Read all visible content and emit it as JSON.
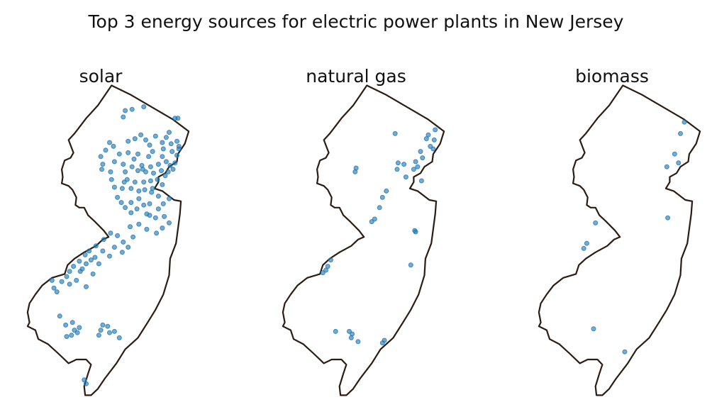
{
  "figure": {
    "title": "Top 3 energy sources for electric power plants in New Jersey"
  },
  "map_style": {
    "outline_color": "#2b1d12",
    "marker_color": "#1f77b4",
    "background": "#ffffff"
  },
  "panels": [
    {
      "title": "solar",
      "plants": [
        {
          "lon": -74.55,
          "lat": 41.16
        },
        {
          "lon": -74.48,
          "lat": 41.17
        },
        {
          "lon": -74.36,
          "lat": 41.19
        },
        {
          "lon": -74.57,
          "lat": 41.11
        },
        {
          "lon": -74.04,
          "lat": 41.1
        },
        {
          "lon": -74.01,
          "lat": 41.1
        },
        {
          "lon": -74.1,
          "lat": 40.99
        },
        {
          "lon": -74.24,
          "lat": 40.96
        },
        {
          "lon": -74.13,
          "lat": 40.95
        },
        {
          "lon": -74.39,
          "lat": 40.97
        },
        {
          "lon": -74.45,
          "lat": 40.94
        },
        {
          "lon": -74.52,
          "lat": 40.92
        },
        {
          "lon": -74.71,
          "lat": 40.91
        },
        {
          "lon": -74.67,
          "lat": 40.88
        },
        {
          "lon": -74.34,
          "lat": 40.93
        },
        {
          "lon": -74.3,
          "lat": 40.89
        },
        {
          "lon": -74.17,
          "lat": 40.91
        },
        {
          "lon": -74.08,
          "lat": 40.9
        },
        {
          "lon": -74.02,
          "lat": 40.92
        },
        {
          "lon": -74.0,
          "lat": 40.88
        },
        {
          "lon": -74.07,
          "lat": 40.84
        },
        {
          "lon": -74.16,
          "lat": 40.86
        },
        {
          "lon": -74.27,
          "lat": 40.84
        },
        {
          "lon": -74.31,
          "lat": 40.8
        },
        {
          "lon": -74.42,
          "lat": 40.82
        },
        {
          "lon": -74.52,
          "lat": 40.83
        },
        {
          "lon": -74.61,
          "lat": 40.82
        },
        {
          "lon": -74.75,
          "lat": 40.85
        },
        {
          "lon": -74.8,
          "lat": 40.8
        },
        {
          "lon": -74.66,
          "lat": 40.76
        },
        {
          "lon": -74.57,
          "lat": 40.74
        },
        {
          "lon": -74.48,
          "lat": 40.72
        },
        {
          "lon": -74.38,
          "lat": 40.73
        },
        {
          "lon": -74.29,
          "lat": 40.72
        },
        {
          "lon": -74.21,
          "lat": 40.74
        },
        {
          "lon": -74.13,
          "lat": 40.76
        },
        {
          "lon": -74.09,
          "lat": 40.73
        },
        {
          "lon": -74.04,
          "lat": 40.75
        },
        {
          "lon": -74.02,
          "lat": 40.81
        },
        {
          "lon": -74.06,
          "lat": 40.7
        },
        {
          "lon": -74.11,
          "lat": 40.68
        },
        {
          "lon": -74.18,
          "lat": 40.69
        },
        {
          "lon": -74.26,
          "lat": 40.67
        },
        {
          "lon": -74.34,
          "lat": 40.68
        },
        {
          "lon": -74.42,
          "lat": 40.69
        },
        {
          "lon": -74.55,
          "lat": 40.68
        },
        {
          "lon": -74.7,
          "lat": 40.68
        },
        {
          "lon": -74.78,
          "lat": 40.74
        },
        {
          "lon": -74.53,
          "lat": 40.62
        },
        {
          "lon": -74.45,
          "lat": 40.6
        },
        {
          "lon": -74.36,
          "lat": 40.6
        },
        {
          "lon": -74.29,
          "lat": 40.61
        },
        {
          "lon": -74.22,
          "lat": 40.62
        },
        {
          "lon": -74.17,
          "lat": 40.58
        },
        {
          "lon": -74.27,
          "lat": 40.55
        },
        {
          "lon": -74.35,
          "lat": 40.54
        },
        {
          "lon": -74.41,
          "lat": 40.53
        },
        {
          "lon": -74.49,
          "lat": 40.55
        },
        {
          "lon": -74.58,
          "lat": 40.55
        },
        {
          "lon": -74.66,
          "lat": 40.56
        },
        {
          "lon": -74.21,
          "lat": 40.49
        },
        {
          "lon": -74.1,
          "lat": 40.47
        },
        {
          "lon": -74.16,
          "lat": 40.43
        },
        {
          "lon": -74.3,
          "lat": 40.43
        },
        {
          "lon": -74.41,
          "lat": 40.47
        },
        {
          "lon": -74.49,
          "lat": 40.44
        },
        {
          "lon": -74.55,
          "lat": 40.4
        },
        {
          "lon": -74.43,
          "lat": 40.39
        },
        {
          "lon": -74.33,
          "lat": 40.35
        },
        {
          "lon": -74.24,
          "lat": 40.32
        },
        {
          "lon": -74.15,
          "lat": 40.33
        },
        {
          "lon": -74.1,
          "lat": 40.28
        },
        {
          "lon": -74.17,
          "lat": 40.24
        },
        {
          "lon": -74.23,
          "lat": 40.2
        },
        {
          "lon": -74.33,
          "lat": 40.23
        },
        {
          "lon": -74.41,
          "lat": 40.27
        },
        {
          "lon": -74.5,
          "lat": 40.25
        },
        {
          "lon": -74.47,
          "lat": 40.17
        },
        {
          "lon": -74.57,
          "lat": 40.13
        },
        {
          "lon": -74.63,
          "lat": 40.18
        },
        {
          "lon": -74.7,
          "lat": 40.2
        },
        {
          "lon": -74.77,
          "lat": 40.15
        },
        {
          "lon": -74.85,
          "lat": 40.1
        },
        {
          "lon": -74.92,
          "lat": 40.06
        },
        {
          "lon": -74.96,
          "lat": 40.03
        },
        {
          "lon": -75.02,
          "lat": 39.98
        },
        {
          "lon": -75.08,
          "lat": 39.94
        },
        {
          "lon": -75.12,
          "lat": 39.9
        },
        {
          "lon": -75.15,
          "lat": 39.86
        },
        {
          "lon": -75.01,
          "lat": 39.9
        },
        {
          "lon": -74.95,
          "lat": 39.96
        },
        {
          "lon": -74.86,
          "lat": 40.01
        },
        {
          "lon": -74.78,
          "lat": 40.06
        },
        {
          "lon": -74.71,
          "lat": 40.02
        },
        {
          "lon": -74.66,
          "lat": 40.09
        },
        {
          "lon": -74.58,
          "lat": 40.05
        },
        {
          "lon": -74.52,
          "lat": 40.09
        },
        {
          "lon": -74.82,
          "lat": 39.96
        },
        {
          "lon": -74.88,
          "lat": 39.88
        },
        {
          "lon": -75.2,
          "lat": 39.82
        },
        {
          "lon": -75.28,
          "lat": 39.77
        },
        {
          "lon": -75.12,
          "lat": 39.8
        },
        {
          "lon": -75.05,
          "lat": 39.83
        },
        {
          "lon": -74.95,
          "lat": 39.78
        },
        {
          "lon": -75.22,
          "lat": 39.55
        },
        {
          "lon": -75.16,
          "lat": 39.48
        },
        {
          "lon": -75.09,
          "lat": 39.5
        },
        {
          "lon": -75.02,
          "lat": 39.46
        },
        {
          "lon": -75.04,
          "lat": 39.42
        },
        {
          "lon": -75.1,
          "lat": 39.4
        },
        {
          "lon": -74.73,
          "lat": 39.47
        },
        {
          "lon": -74.8,
          "lat": 39.44
        },
        {
          "lon": -74.71,
          "lat": 39.42
        },
        {
          "lon": -74.66,
          "lat": 39.43
        },
        {
          "lon": -74.61,
          "lat": 39.38
        },
        {
          "lon": -74.82,
          "lat": 39.4
        },
        {
          "lon": -75.15,
          "lat": 39.39
        },
        {
          "lon": -74.97,
          "lat": 39.05
        },
        {
          "lon": -74.95,
          "lat": 39.02
        },
        {
          "lon": -74.17,
          "lat": 40.8
        },
        {
          "lon": -74.59,
          "lat": 40.44
        },
        {
          "lon": -74.49,
          "lat": 40.36
        },
        {
          "lon": -74.36,
          "lat": 40.42
        },
        {
          "lon": -74.63,
          "lat": 40.48
        },
        {
          "lon": -74.28,
          "lat": 40.52
        },
        {
          "lon": -74.37,
          "lat": 40.7
        },
        {
          "lon": -74.46,
          "lat": 40.78
        },
        {
          "lon": -74.56,
          "lat": 40.6
        },
        {
          "lon": -74.69,
          "lat": 40.62
        },
        {
          "lon": -74.14,
          "lat": 40.65
        },
        {
          "lon": -74.0,
          "lat": 40.86
        },
        {
          "lon": -74.79,
          "lat": 40.7
        },
        {
          "lon": -74.9,
          "lat": 39.99
        },
        {
          "lon": -74.99,
          "lat": 39.92
        },
        {
          "lon": -75.3,
          "lat": 39.83
        },
        {
          "lon": -75.25,
          "lat": 39.74
        },
        {
          "lon": -74.3,
          "lat": 40.34
        },
        {
          "lon": -74.21,
          "lat": 40.39
        },
        {
          "lon": -75.07,
          "lat": 39.44
        },
        {
          "lon": -74.78,
          "lat": 39.48
        }
      ]
    },
    {
      "title": "natural gas",
      "plants": [
        {
          "lon": -74.4,
          "lat": 40.98
        },
        {
          "lon": -74.06,
          "lat": 40.97
        },
        {
          "lon": -73.99,
          "lat": 41.01
        },
        {
          "lon": -74.04,
          "lat": 40.88
        },
        {
          "lon": -74.08,
          "lat": 40.94
        },
        {
          "lon": -74.0,
          "lat": 40.93
        },
        {
          "lon": -74.01,
          "lat": 40.86
        },
        {
          "lon": -74.14,
          "lat": 40.84
        },
        {
          "lon": -74.12,
          "lat": 40.79
        },
        {
          "lon": -74.19,
          "lat": 40.76
        },
        {
          "lon": -74.17,
          "lat": 40.72
        },
        {
          "lon": -74.21,
          "lat": 40.7
        },
        {
          "lon": -74.31,
          "lat": 40.74
        },
        {
          "lon": -74.37,
          "lat": 40.75
        },
        {
          "lon": -74.38,
          "lat": 40.7
        },
        {
          "lon": -74.29,
          "lat": 40.64
        },
        {
          "lon": -74.13,
          "lat": 40.61
        },
        {
          "lon": -74.49,
          "lat": 40.53
        },
        {
          "lon": -74.53,
          "lat": 40.48
        },
        {
          "lon": -74.56,
          "lat": 40.4
        },
        {
          "lon": -74.61,
          "lat": 40.31
        },
        {
          "lon": -74.64,
          "lat": 40.29
        },
        {
          "lon": -74.81,
          "lat": 40.68
        },
        {
          "lon": -74.8,
          "lat": 40.71
        },
        {
          "lon": -74.2,
          "lat": 40.22
        },
        {
          "lon": -74.19,
          "lat": 40.21
        },
        {
          "lon": -74.24,
          "lat": 39.95
        },
        {
          "lon": -75.06,
          "lat": 39.99
        },
        {
          "lon": -75.09,
          "lat": 39.94
        },
        {
          "lon": -75.11,
          "lat": 39.91
        },
        {
          "lon": -75.14,
          "lat": 39.89
        },
        {
          "lon": -75.01,
          "lat": 39.43
        },
        {
          "lon": -74.87,
          "lat": 39.43
        },
        {
          "lon": -74.84,
          "lat": 39.41
        },
        {
          "lon": -74.85,
          "lat": 39.38
        },
        {
          "lon": -74.78,
          "lat": 39.35
        },
        {
          "lon": -74.51,
          "lat": 39.36
        },
        {
          "lon": -74.53,
          "lat": 39.34
        }
      ]
    },
    {
      "title": "biomass",
      "plants": [
        {
          "lon": -74.06,
          "lat": 41.07
        },
        {
          "lon": -74.1,
          "lat": 40.98
        },
        {
          "lon": -74.16,
          "lat": 40.82
        },
        {
          "lon": -74.12,
          "lat": 40.75
        },
        {
          "lon": -74.24,
          "lat": 40.72
        },
        {
          "lon": -74.23,
          "lat": 40.32
        },
        {
          "lon": -74.97,
          "lat": 40.28
        },
        {
          "lon": -75.06,
          "lat": 40.12
        },
        {
          "lon": -75.09,
          "lat": 40.08
        },
        {
          "lon": -74.99,
          "lat": 39.45
        },
        {
          "lon": -74.67,
          "lat": 39.27
        }
      ]
    }
  ]
}
